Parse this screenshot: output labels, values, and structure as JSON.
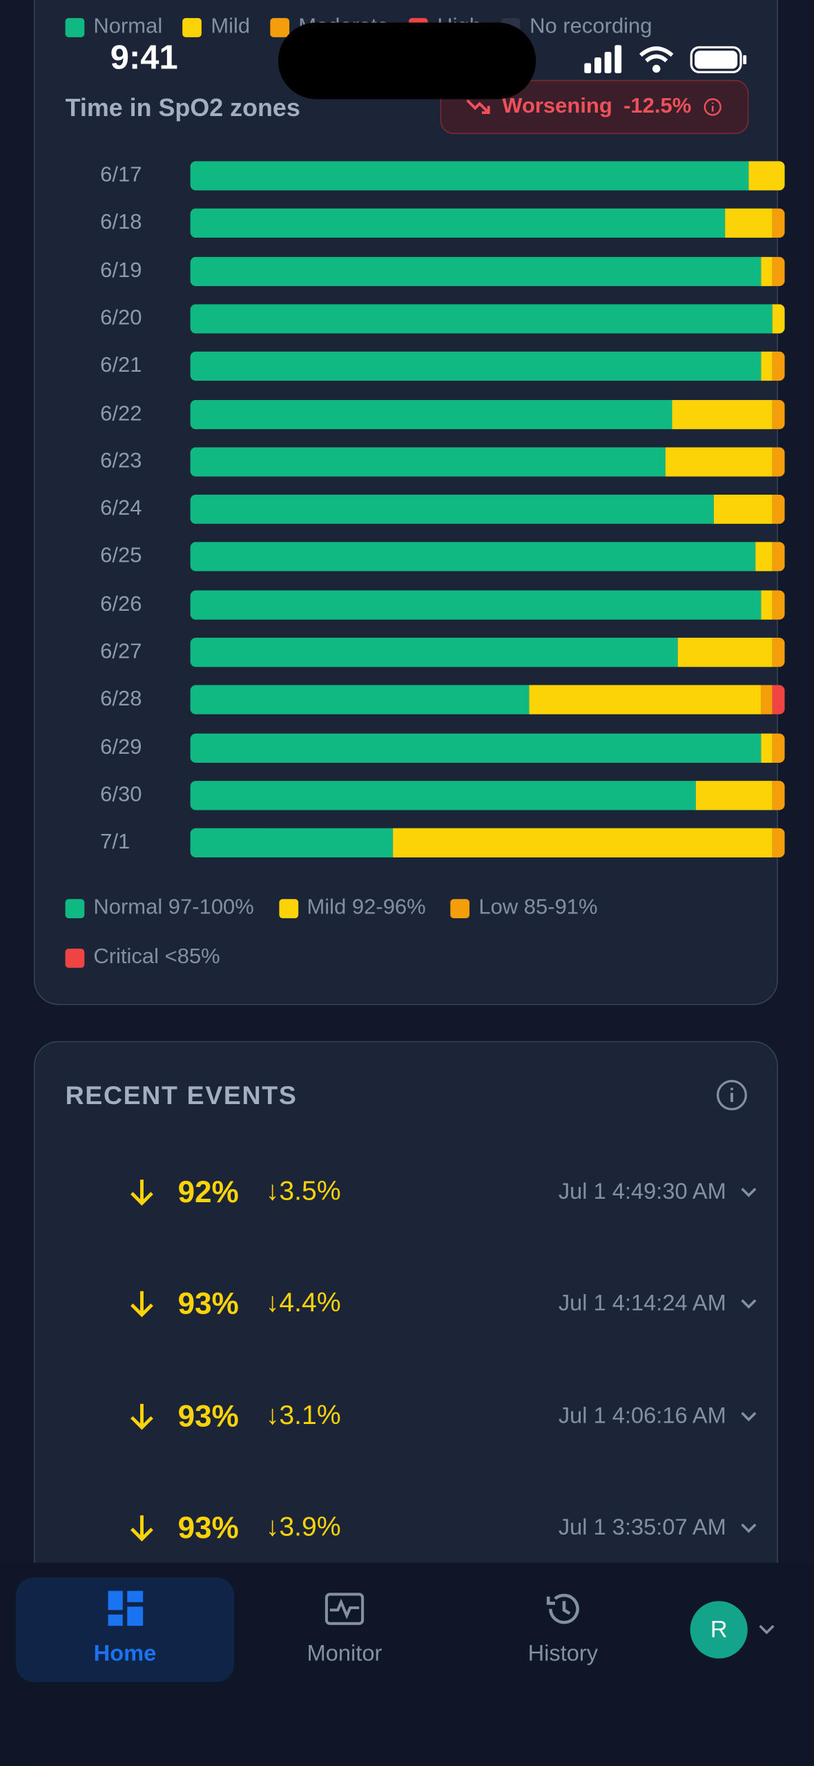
{
  "status_bar": {
    "time": "9:41"
  },
  "zones_card": {
    "top_legend": [
      "Normal",
      "Mild",
      "Moderate",
      "High",
      "No recording"
    ],
    "title": "Time in SpO2 zones",
    "trend": {
      "label": "Worsening",
      "value": "-12.5%"
    },
    "chart": {
      "type": "bar",
      "stacked": true,
      "orientation": "horizontal",
      "categories": [
        "6/17",
        "6/18",
        "6/19",
        "6/20",
        "6/21",
        "6/22",
        "6/23",
        "6/24",
        "6/25",
        "6/26",
        "6/27",
        "6/28",
        "6/29",
        "6/30",
        "7/1"
      ],
      "series": [
        {
          "name": "Normal 97-100%",
          "color": "#10b981",
          "values": [
            94,
            90,
            96,
            98,
            96,
            81,
            80,
            88,
            95,
            96,
            82,
            57,
            96,
            85,
            34
          ]
        },
        {
          "name": "Mild 92-96%",
          "color": "#fcd307",
          "values": [
            6,
            8,
            2,
            2,
            2,
            17,
            18,
            10,
            3,
            2,
            16,
            39,
            2,
            13,
            64
          ]
        },
        {
          "name": "Low 85-91%",
          "color": "#f59e0b",
          "values": [
            0,
            2,
            2,
            0,
            2,
            2,
            2,
            2,
            2,
            2,
            2,
            2,
            2,
            2,
            2
          ]
        },
        {
          "name": "Critical <85%",
          "color": "#ef4444",
          "values": [
            0,
            0,
            0,
            0,
            0,
            0,
            0,
            0,
            0,
            0,
            0,
            2,
            0,
            0,
            0
          ]
        }
      ]
    }
  },
  "events_card": {
    "title": "RECENT EVENTS",
    "events": [
      {
        "spo2": "92%",
        "drop": "↓3.5%",
        "time": "Jul 1 4:49:30 AM"
      },
      {
        "spo2": "93%",
        "drop": "↓4.4%",
        "time": "Jul 1 4:14:24 AM"
      },
      {
        "spo2": "93%",
        "drop": "↓3.1%",
        "time": "Jul 1 4:06:16 AM"
      },
      {
        "spo2": "93%",
        "drop": "↓3.9%",
        "time": "Jul 1 3:35:07 AM"
      }
    ]
  },
  "nav": {
    "items": [
      "Home",
      "Monitor",
      "History"
    ],
    "avatar": "R"
  }
}
